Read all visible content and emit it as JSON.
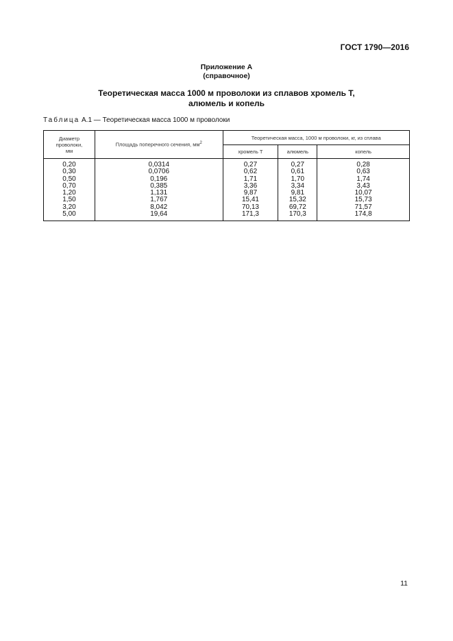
{
  "header": {
    "standard": "ГОСТ 1790—2016"
  },
  "appendix": {
    "title": "Приложение А",
    "type": "(справочное)"
  },
  "title": {
    "line1": "Теоретическая масса 1000 м проволоки из сплавов хромель Т,",
    "line2": "алюмель и копель"
  },
  "caption": {
    "label": "Таблица",
    "rest": " А.1 — Теоретическая масса 1000 м проволоки"
  },
  "table": {
    "headers": {
      "diameter": "Диаметр проволоки, мм",
      "area": "Площадь поперечного сечения, мм",
      "area_sup": "2",
      "mass_group": "Теоретическая масса, 1000 м проволоки, кг, из сплава",
      "chromel": "хромель Т",
      "alumel": "алюмель",
      "copel": "копель"
    },
    "rows": [
      [
        "0,20",
        "0,0314",
        "0,27",
        "0,27",
        "0,28"
      ],
      [
        "0,30",
        "0,0706",
        "0,62",
        "0,61",
        "0,63"
      ],
      [
        "0,50",
        "0,196",
        "1,71",
        "1,70",
        "1,74"
      ],
      [
        "0,70",
        "0,385",
        "3,36",
        "3,34",
        "3,43"
      ],
      [
        "1,20",
        "1,131",
        "9,87",
        "9,81",
        "10,07"
      ],
      [
        "1,50",
        "1,767",
        "15,41",
        "15,32",
        "15,73"
      ],
      [
        "3,20",
        "8,042",
        "70,13",
        "69,72",
        "71,57"
      ],
      [
        "5,00",
        "19,64",
        "171,3",
        "170,3",
        "174,8"
      ]
    ]
  },
  "footer": {
    "page": "11"
  }
}
